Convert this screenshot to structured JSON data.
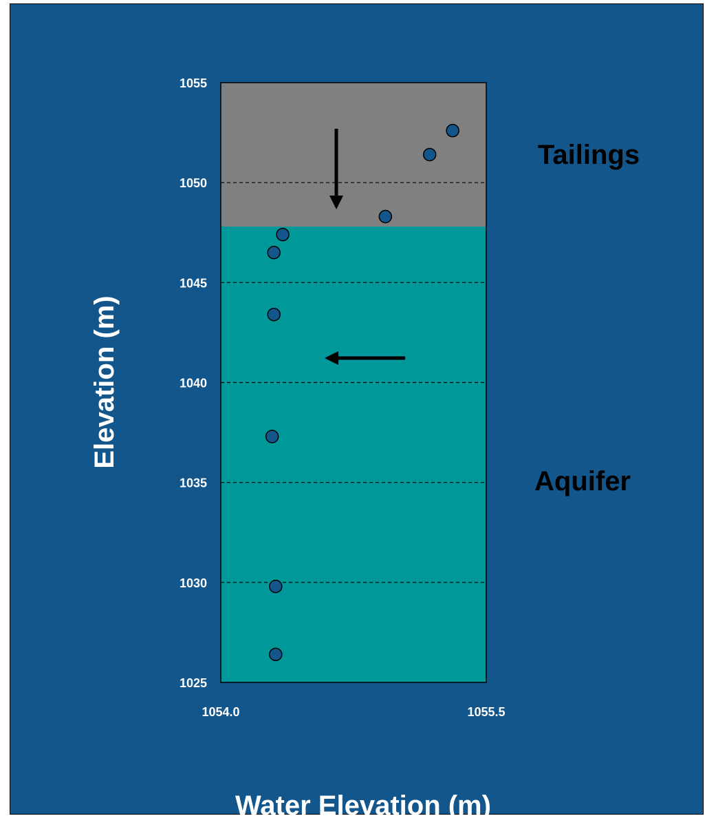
{
  "colors": {
    "background": "#13568c",
    "tailings_zone": "#808080",
    "aquifer_zone": "#009898",
    "marker_fill": "#13568c",
    "marker_stroke": "#000000",
    "gridline": "#000000"
  },
  "chart_data": {
    "type": "scatter",
    "title": "",
    "xlabel": "Water Elevation (m)",
    "ylabel": "Elevation (m)",
    "xlim": [
      1054.0,
      1055.5
    ],
    "ylim": [
      1025,
      1055
    ],
    "x_tick_labels": [
      "1054.0",
      "1055.5"
    ],
    "y_tick_labels": [
      "1025",
      "1030",
      "1035",
      "1040",
      "1045",
      "1050",
      "1055"
    ],
    "y_ticks": [
      1025,
      1030,
      1035,
      1040,
      1045,
      1050,
      1055
    ],
    "grid": "horizontal dashed",
    "zones": [
      {
        "name": "Tailings",
        "y_from": 1047.8,
        "y_to": 1055
      },
      {
        "name": "Aquifer",
        "y_from": 1025,
        "y_to": 1047.8
      }
    ],
    "points": [
      {
        "x": 1055.31,
        "y": 1052.6
      },
      {
        "x": 1055.18,
        "y": 1051.4
      },
      {
        "x": 1054.93,
        "y": 1048.3
      },
      {
        "x": 1054.35,
        "y": 1047.4
      },
      {
        "x": 1054.3,
        "y": 1046.5
      },
      {
        "x": 1054.3,
        "y": 1043.4
      },
      {
        "x": 1054.29,
        "y": 1037.3
      },
      {
        "x": 1054.31,
        "y": 1029.8
      },
      {
        "x": 1054.31,
        "y": 1026.4
      }
    ],
    "arrows": [
      {
        "direction": "down",
        "zone": "Tailings"
      },
      {
        "direction": "left",
        "zone": "Aquifer"
      }
    ]
  }
}
